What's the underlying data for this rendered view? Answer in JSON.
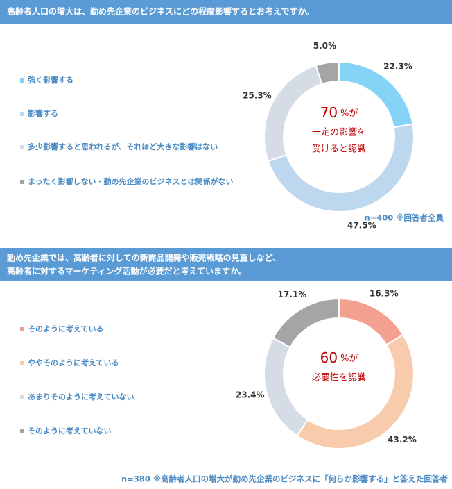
{
  "chart_data": [
    {
      "type": "pie",
      "donut": true,
      "title": [
        "高齢者人口の増大は、勤め先企業のビジネスにどの程度影響するとお考えですか。"
      ],
      "categories": [
        "強く影響する",
        "影響する",
        "多少影響すると思われるが、それほど大きな影響はない",
        "まったく影響しない・勤め先企業のビジネスとは関係がない"
      ],
      "values": [
        22.3,
        47.5,
        25.3,
        5
      ],
      "value_labels": [
        "22.3%",
        "47.5%",
        "25.3%",
        "5.0%"
      ],
      "colors": [
        "#85d4f7",
        "#bdd7ee",
        "#d6dce5",
        "#a5a5a5"
      ],
      "center_text": {
        "number": 70,
        "unit": "%が",
        "lines": [
          "一定の影響を",
          "受けると認識"
        ]
      },
      "note": "n=400 ※回答者全員"
    },
    {
      "type": "pie",
      "donut": true,
      "title": [
        "勤め先企業では、高齢者に対しての新商品開発や販売戦略の見直しなど、",
        "高齢者に対するマーケティング活動が必要だと考えていますか。"
      ],
      "categories": [
        "そのように考えている",
        "ややそのように考えている",
        "あまりそのように考えていない",
        "そのように考えていない"
      ],
      "values": [
        16.3,
        43.2,
        23.4,
        17.1
      ],
      "value_labels": [
        "16.3%",
        "43.2%",
        "23.4%",
        "17.1%"
      ],
      "colors": [
        "#f4a090",
        "#f8cbad",
        "#d6dce5",
        "#a5a5a5"
      ],
      "center_text": {
        "number": 60,
        "unit": "%が",
        "lines": [
          "必要性を認識"
        ]
      },
      "note": "n=380 ※高齢者人口の増大が勤め先企業のビジネスに「何らか影響する」と答えた回答者"
    }
  ]
}
